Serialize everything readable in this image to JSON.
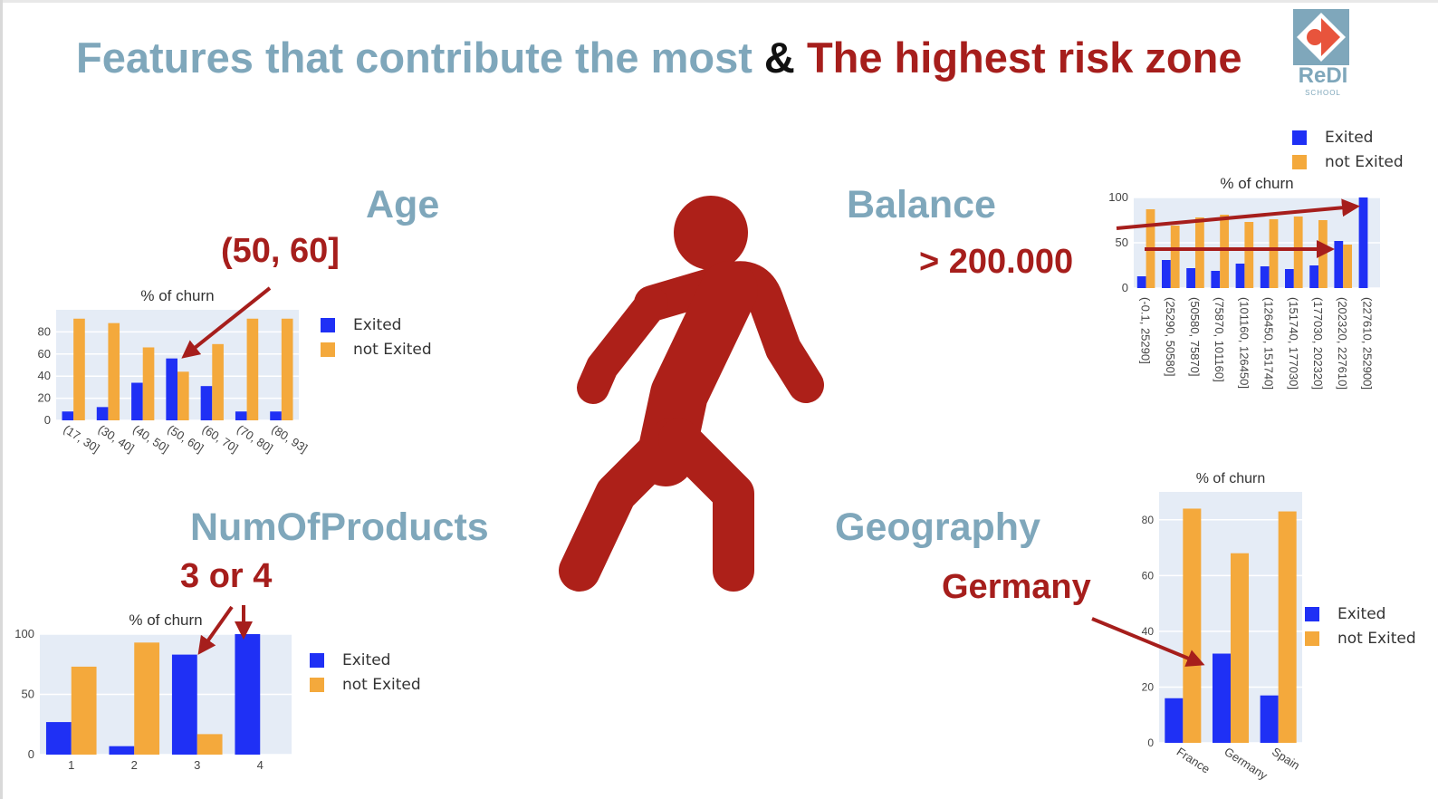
{
  "title": {
    "part1": "Features that contribute the most",
    "part2": "&",
    "part3": "The highest risk zone"
  },
  "logo": {
    "name": "ReDI",
    "sub": "SCHOOL"
  },
  "colors": {
    "exited": "#1f30f5",
    "not_exited": "#f4a93c",
    "accent_red": "#a61e1c",
    "title_blue": "#7fa7bb",
    "plot_bg": "#e5ecf6"
  },
  "icons": {
    "walker": "walking-person-icon",
    "logo": "redi-logo-icon"
  },
  "features": {
    "age": {
      "label": "Age",
      "note": "(50, 60]"
    },
    "balance": {
      "label": "Balance",
      "note": "> 200.000"
    },
    "products": {
      "label": "NumOfProducts",
      "note": "3 or 4"
    },
    "geography": {
      "label": "Geography",
      "note": "Germany"
    }
  },
  "legend": {
    "exited": "Exited",
    "not_exited": "not Exited"
  },
  "chart_data": [
    {
      "id": "age",
      "type": "bar",
      "title": "% of churn",
      "categories": [
        "(17, 30]",
        "(30, 40]",
        "(40, 50]",
        "(50, 60]",
        "(60, 70]",
        "(70, 80]",
        "(80, 93]"
      ],
      "series": [
        {
          "name": "Exited",
          "values": [
            8,
            12,
            34,
            56,
            31,
            8,
            8
          ]
        },
        {
          "name": "not Exited",
          "values": [
            92,
            88,
            66,
            44,
            69,
            92,
            92
          ]
        }
      ],
      "yticks": [
        0,
        20,
        40,
        60,
        80
      ],
      "ylim": [
        0,
        100
      ],
      "legend_position": "right"
    },
    {
      "id": "balance",
      "type": "bar",
      "title": "% of churn",
      "categories": [
        "(-0.1, 25290]",
        "(25290, 50580]",
        "(50580, 75870]",
        "(75870, 101160]",
        "(101160, 126450]",
        "(126450, 151740]",
        "(151740, 177030]",
        "(177030, 202320]",
        "(202320, 227610]",
        "(227610, 252900]"
      ],
      "series": [
        {
          "name": "Exited",
          "values": [
            13,
            31,
            22,
            19,
            27,
            24,
            21,
            25,
            52,
            100
          ]
        },
        {
          "name": "not Exited",
          "values": [
            87,
            69,
            78,
            81,
            73,
            76,
            79,
            75,
            48,
            0
          ]
        }
      ],
      "yticks": [
        0,
        50,
        100
      ],
      "ylim": [
        0,
        100
      ],
      "legend_position": "top-right"
    },
    {
      "id": "products",
      "type": "bar",
      "title": "% of churn",
      "categories": [
        "1",
        "2",
        "3",
        "4"
      ],
      "series": [
        {
          "name": "Exited",
          "values": [
            27,
            7,
            83,
            100
          ]
        },
        {
          "name": "not Exited",
          "values": [
            73,
            93,
            17,
            0
          ]
        }
      ],
      "yticks": [
        0,
        50,
        100
      ],
      "ylim": [
        0,
        100
      ],
      "legend_position": "right"
    },
    {
      "id": "geography",
      "type": "bar",
      "title": "% of churn",
      "categories": [
        "France",
        "Germany",
        "Spain"
      ],
      "series": [
        {
          "name": "Exited",
          "values": [
            16,
            32,
            17
          ]
        },
        {
          "name": "not Exited",
          "values": [
            84,
            68,
            83
          ]
        }
      ],
      "yticks": [
        0,
        20,
        40,
        60,
        80
      ],
      "ylim": [
        0,
        90
      ],
      "legend_position": "right"
    }
  ]
}
